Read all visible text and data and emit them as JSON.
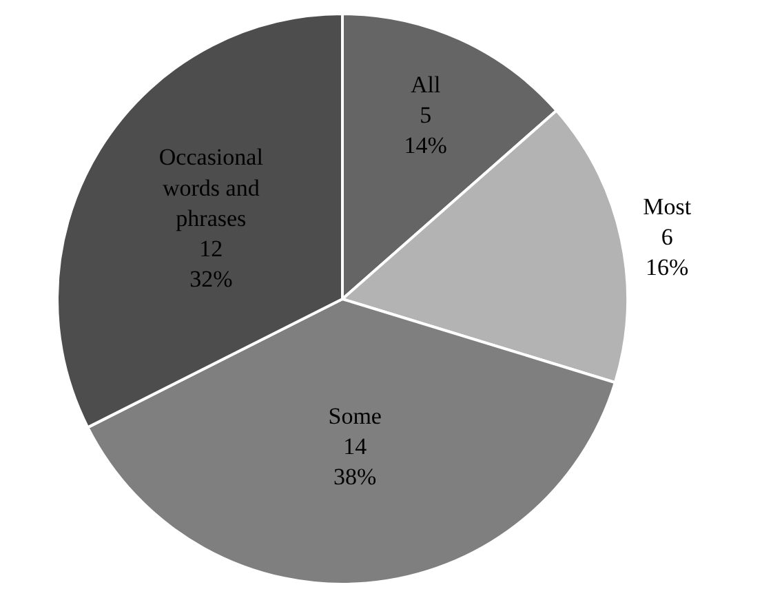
{
  "chart_data": {
    "type": "pie",
    "categories": [
      "All",
      "Most",
      "Some",
      "Occasional words and phrases"
    ],
    "values": [
      5,
      6,
      14,
      12
    ],
    "colors": [
      "#656565",
      "#b3b3b3",
      "#7f7f7f",
      "#4d4d4d"
    ],
    "value_labels": [
      "5\n14%",
      "6\n16%",
      "14\n38%",
      "12\n32%"
    ],
    "legend": false
  }
}
